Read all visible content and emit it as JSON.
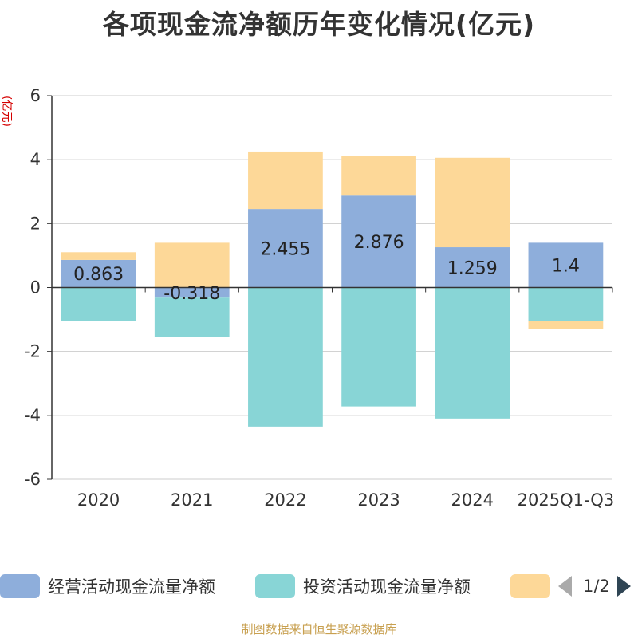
{
  "title": "各项现金流净额历年变化情况(亿元)",
  "source_note": "制图数据来自恒生聚源数据库",
  "chart_data": {
    "type": "bar",
    "stacked": true,
    "title": "各项现金流净额历年变化情况(亿元)",
    "ylabel": "(亿元)",
    "xlabel": "",
    "ylim": [
      -6,
      6
    ],
    "yticks": [
      6,
      4,
      2,
      0,
      -2,
      -4,
      -6
    ],
    "grid": true,
    "categories": [
      "2020",
      "2021",
      "2022",
      "2023",
      "2024",
      "2025Q1-Q3"
    ],
    "series": [
      {
        "name": "经营活动现金流量净额",
        "color": "#8eaedb",
        "values": [
          0.863,
          -0.318,
          2.455,
          2.876,
          1.259,
          1.4
        ],
        "labels": [
          "0.863",
          "-0.318",
          "2.455",
          "2.876",
          "1.259",
          "1.4"
        ]
      },
      {
        "name": "投资活动现金流量净额",
        "color": "#88d5d6",
        "values": [
          -1.05,
          -1.22,
          -4.35,
          -3.72,
          -4.1,
          -1.05
        ]
      },
      {
        "name": "",
        "color": "#fdd898",
        "values": [
          0.24,
          1.4,
          1.8,
          1.23,
          2.8,
          -0.25
        ]
      }
    ],
    "legend": {
      "position": "bottom",
      "page": "1/2"
    }
  }
}
